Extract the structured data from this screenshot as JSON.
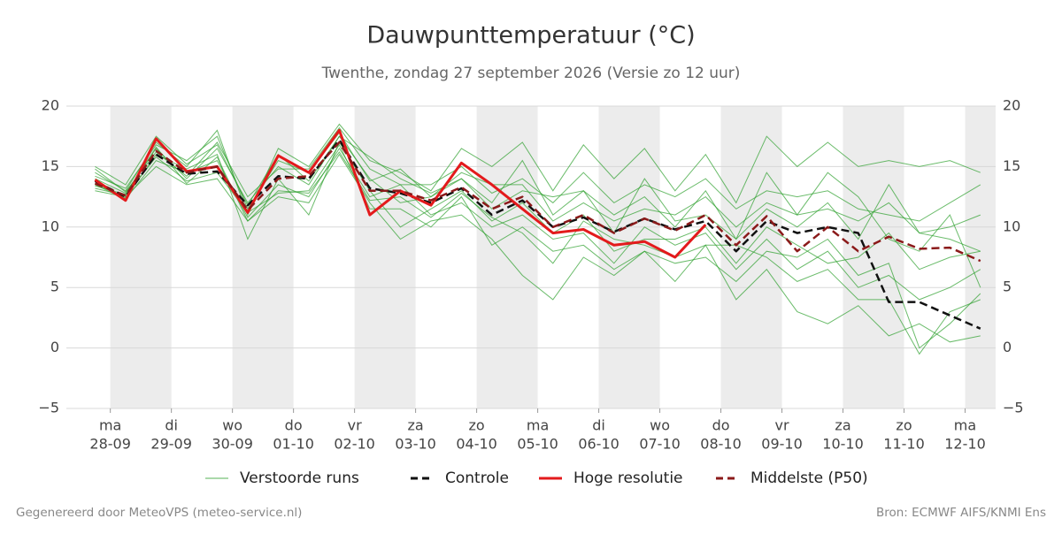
{
  "chart_data": {
    "type": "line",
    "title": "Dauwpunttemperatuur (°C)",
    "subtitle": "Twenthe, zondag 27 september 2026 (Versie zo 12 uur)",
    "footer_left": "Gegenereerd door MeteoVPS (meteo-service.nl)",
    "footer_right": "Bron: ECMWF AIFS/KNMI Ens",
    "xlim": [
      -0.72,
      14.5
    ],
    "xticks": [
      {
        "value": 0,
        "label": "ma",
        "sublabel": "28-09"
      },
      {
        "value": 1,
        "label": "di",
        "sublabel": "29-09"
      },
      {
        "value": 2,
        "label": "wo",
        "sublabel": "30-09"
      },
      {
        "value": 3,
        "label": "do",
        "sublabel": "01-10"
      },
      {
        "value": 4,
        "label": "vr",
        "sublabel": "02-10"
      },
      {
        "value": 5,
        "label": "za",
        "sublabel": "03-10"
      },
      {
        "value": 6,
        "label": "zo",
        "sublabel": "04-10"
      },
      {
        "value": 7,
        "label": "ma",
        "sublabel": "05-10"
      },
      {
        "value": 8,
        "label": "di",
        "sublabel": "06-10"
      },
      {
        "value": 9,
        "label": "wo",
        "sublabel": "07-10"
      },
      {
        "value": 10,
        "label": "do",
        "sublabel": "08-10"
      },
      {
        "value": 11,
        "label": "vr",
        "sublabel": "09-10"
      },
      {
        "value": 12,
        "label": "za",
        "sublabel": "10-10"
      },
      {
        "value": 13,
        "label": "zo",
        "sublabel": "11-10"
      },
      {
        "value": 14,
        "label": "ma",
        "sublabel": "12-10"
      }
    ],
    "ylim": [
      -5,
      20
    ],
    "yticks": [
      {
        "value": -5,
        "label": "−5"
      },
      0,
      5,
      10,
      15,
      20
    ],
    "grid": true,
    "x": [
      -0.25,
      0.25,
      0.75,
      1.25,
      1.75,
      2.25,
      2.75,
      3.25,
      3.75,
      4.25,
      4.75,
      5.25,
      5.75,
      6.25,
      6.75,
      7.25,
      7.75,
      8.25,
      8.75,
      9.25,
      9.75,
      10.25,
      10.75,
      11.25,
      11.75,
      12.25,
      12.75,
      13.25,
      13.75,
      14.25
    ],
    "ensemble": {
      "name": "Verstoorde runs",
      "color": "#2ca02c",
      "runs": [
        [
          14.5,
          13.0,
          17.0,
          15.0,
          18.0,
          11.0,
          16.5,
          15.0,
          18.5,
          15.5,
          14.5,
          13.0,
          16.5,
          15.0,
          17.0,
          13.0,
          16.8,
          14.0,
          16.5,
          13.0,
          16.0,
          12.0,
          17.5,
          15.0,
          17.0,
          15.0,
          15.5,
          15.0,
          15.5,
          14.5
        ],
        [
          13.0,
          12.5,
          15.0,
          13.5,
          14.0,
          10.5,
          12.5,
          12.0,
          16.0,
          12.0,
          9.0,
          10.5,
          11.0,
          9.0,
          6.0,
          4.0,
          7.5,
          6.0,
          8.0,
          5.5,
          8.5,
          4.0,
          6.5,
          3.0,
          2.0,
          3.5,
          1.0,
          2.0,
          0.5,
          1.0
        ],
        [
          14.0,
          12.8,
          16.5,
          14.0,
          16.5,
          12.0,
          15.0,
          13.5,
          17.5,
          14.0,
          12.0,
          12.5,
          14.0,
          12.0,
          15.5,
          11.0,
          13.0,
          11.0,
          12.5,
          10.0,
          13.0,
          9.0,
          11.5,
          10.0,
          12.0,
          9.0,
          13.5,
          9.5,
          10.0,
          11.0
        ],
        [
          13.5,
          12.3,
          15.5,
          14.5,
          15.5,
          10.8,
          13.5,
          12.5,
          16.5,
          12.5,
          13.5,
          11.0,
          12.0,
          10.0,
          11.0,
          9.0,
          9.5,
          7.0,
          10.0,
          8.5,
          9.5,
          6.5,
          9.0,
          6.5,
          8.0,
          5.0,
          6.0,
          4.0,
          5.0,
          6.5
        ],
        [
          14.2,
          13.2,
          16.8,
          15.5,
          17.5,
          11.5,
          15.5,
          14.5,
          17.8,
          13.8,
          14.8,
          12.5,
          14.5,
          13.5,
          13.5,
          10.5,
          12.0,
          10.5,
          11.5,
          11.0,
          12.5,
          10.0,
          12.0,
          11.0,
          11.5,
          10.5,
          12.0,
          9.5,
          9.0,
          8.0
        ],
        [
          13.2,
          12.6,
          15.8,
          13.8,
          14.5,
          11.2,
          12.8,
          13.0,
          16.8,
          11.5,
          11.5,
          10.0,
          12.5,
          8.5,
          10.0,
          8.0,
          8.5,
          6.5,
          8.0,
          7.0,
          7.5,
          5.5,
          8.0,
          7.5,
          9.0,
          6.0,
          7.0,
          0.0,
          2.0,
          4.5
        ],
        [
          14.8,
          12.9,
          16.2,
          14.2,
          17.0,
          12.5,
          14.8,
          14.8,
          18.2,
          14.8,
          13.5,
          13.5,
          15.0,
          12.8,
          14.0,
          12.0,
          14.5,
          12.0,
          13.5,
          12.5,
          14.0,
          11.5,
          13.0,
          12.5,
          13.0,
          11.5,
          11.0,
          10.5,
          12.0,
          13.5
        ],
        [
          13.6,
          12.4,
          16.0,
          14.8,
          16.0,
          9.0,
          14.0,
          11.0,
          17.0,
          13.0,
          10.0,
          11.5,
          13.0,
          10.5,
          12.0,
          9.5,
          11.0,
          8.0,
          9.0,
          9.0,
          10.0,
          7.0,
          10.0,
          8.5,
          7.0,
          7.5,
          9.5,
          6.5,
          7.5,
          8.0
        ],
        [
          15.0,
          13.5,
          17.5,
          15.2,
          16.8,
          11.8,
          16.0,
          13.8,
          17.5,
          15.8,
          14.0,
          12.8,
          14.0,
          11.5,
          13.0,
          12.5,
          13.0,
          9.5,
          14.0,
          10.5,
          11.0,
          9.0,
          14.5,
          11.0,
          14.5,
          12.5,
          9.0,
          8.0,
          11.0,
          5.0
        ],
        [
          13.4,
          12.7,
          16.6,
          13.6,
          15.8,
          10.5,
          13.0,
          12.8,
          16.2,
          12.2,
          12.5,
          10.8,
          12.8,
          10.8,
          9.5,
          7.0,
          10.5,
          9.0,
          8.5,
          7.5,
          8.5,
          8.5,
          7.5,
          5.5,
          6.5,
          4.0,
          4.0,
          -0.5,
          3.0,
          4.0
        ]
      ]
    },
    "series": [
      {
        "name": "Controle",
        "color": "#111111",
        "dash": true,
        "values": [
          13.8,
          12.5,
          16.0,
          14.4,
          14.6,
          11.8,
          14.2,
          14.0,
          17.2,
          13.2,
          12.8,
          12.0,
          13.2,
          11.0,
          12.2,
          10.0,
          10.8,
          9.6,
          10.7,
          9.8,
          10.5,
          8.0,
          10.5,
          9.5,
          10.0,
          9.5,
          3.8,
          3.8,
          2.7,
          1.6
        ]
      },
      {
        "name": "Hoge resolutie",
        "color": "#e31a1c",
        "dash": false,
        "values": [
          13.9,
          12.2,
          17.3,
          14.6,
          15.0,
          11.2,
          15.9,
          14.5,
          18.0,
          11.0,
          13.0,
          11.8,
          15.3,
          13.5,
          11.5,
          9.5,
          9.8,
          8.5,
          8.8,
          7.5,
          10.2,
          null,
          null,
          null,
          null,
          null,
          null,
          null,
          null,
          null
        ]
      },
      {
        "name": "Middelste (P50)",
        "color": "#8b1a1a",
        "dash": true,
        "values": [
          13.6,
          12.6,
          16.3,
          14.5,
          15.0,
          11.4,
          14.0,
          14.2,
          17.0,
          13.0,
          13.0,
          12.2,
          13.3,
          11.5,
          12.5,
          10.0,
          11.0,
          9.5,
          10.7,
          9.7,
          11.0,
          8.5,
          10.9,
          8.0,
          10.0,
          8.0,
          9.2,
          8.2,
          8.3,
          7.2
        ]
      }
    ]
  }
}
